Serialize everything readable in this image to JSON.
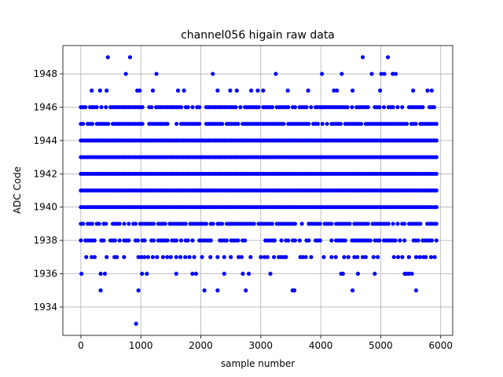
{
  "chart_data": {
    "type": "scatter",
    "title": "channel056 higain raw data",
    "xlabel": "sample number",
    "ylabel": "ADC Code",
    "xlim": [
      -300,
      6200
    ],
    "ylim": [
      1932.3,
      1949.7
    ],
    "xticks": [
      0,
      1000,
      2000,
      3000,
      4000,
      5000,
      6000
    ],
    "yticks": [
      1934,
      1936,
      1938,
      1940,
      1942,
      1944,
      1946,
      1948
    ],
    "grid": true,
    "marker_color": "#0000ff",
    "n_samples": 5952,
    "dense_levels": [
      1938,
      1939,
      1940,
      1941,
      1942,
      1943,
      1944,
      1945,
      1946
    ],
    "series": [
      {
        "values_sparse": [
          {
            "level": 1949,
            "x": [
              450,
              820,
              4700,
              5120
            ]
          },
          {
            "level": 1948,
            "x": [
              750,
              1260,
              2200,
              3250,
              4020,
              4350,
              4850,
              5010,
              5060,
              5200,
              5250
            ]
          },
          {
            "level": 1947,
            "x": [
              180,
              320,
              430,
              940,
              980,
              1200,
              1620,
              1720,
              2280,
              2490,
              2600,
              2840,
              2950,
              3040,
              3450,
              3790,
              4220,
              4270,
              4530,
              4990,
              5540,
              5780,
              5850
            ]
          },
          {
            "level": 1937,
            "x": [
              90,
              180,
              230,
              430,
              560,
              600,
              720,
              960,
              1010,
              1060,
              1120,
              1200,
              1270,
              1370,
              1440,
              1500,
              1590,
              1660,
              1740,
              1810,
              1890,
              2020,
              2160,
              2280,
              2390,
              2500,
              2630,
              2680,
              2830,
              3000,
              3060,
              3110,
              3220,
              3300,
              3340,
              3380,
              3420,
              3660,
              3700,
              3750,
              3840,
              4050,
              4180,
              4250,
              4390,
              4460,
              4560,
              4610,
              4700,
              4750,
              4880,
              4950,
              5220,
              5290,
              5360,
              5470,
              5590,
              5650,
              5710,
              5750,
              5840,
              5900
            ]
          },
          {
            "level": 1936,
            "x": [
              10,
              330,
              400,
              1020,
              1100,
              1590,
              1860,
              1920,
              2390,
              2700,
              2800,
              3160,
              4340,
              4370,
              4620,
              4900,
              5400,
              5430,
              5470,
              5520
            ]
          },
          {
            "level": 1935,
            "x": [
              330,
              960,
              2060,
              2280,
              2750,
              3530,
              3560,
              4530,
              5590
            ]
          },
          {
            "level": 1933,
            "x": [
              920
            ]
          }
        ]
      }
    ]
  }
}
